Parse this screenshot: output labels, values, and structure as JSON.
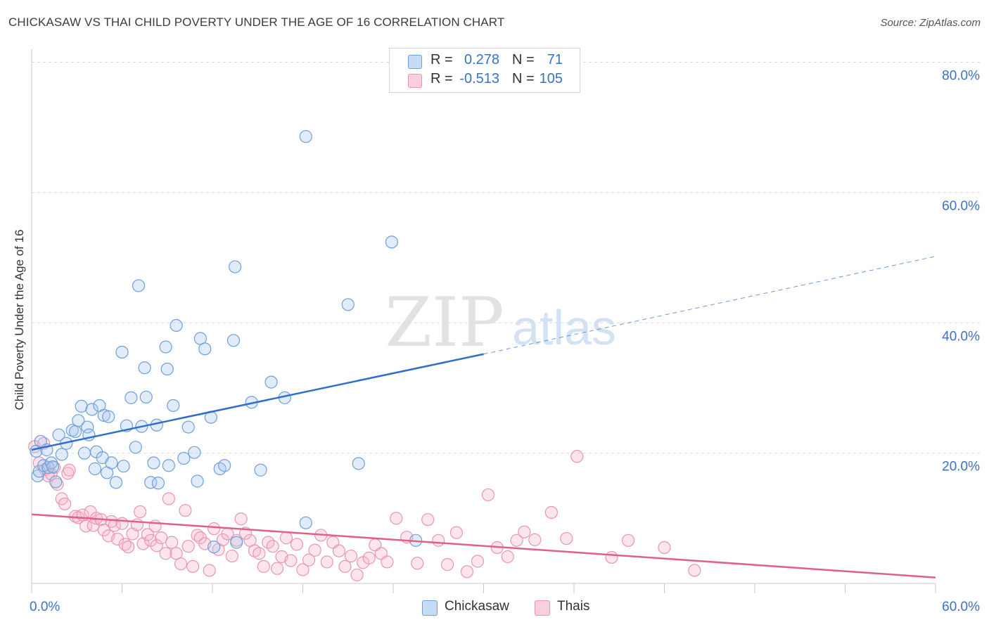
{
  "header": {
    "title": "CHICKASAW VS THAI CHILD POVERTY UNDER THE AGE OF 16 CORRELATION CHART",
    "source": "Source: ZipAtlas.com"
  },
  "watermark": {
    "zip": "ZIP",
    "atlas": "atlas"
  },
  "legend_top": {
    "rows": [
      {
        "r_label": "R =",
        "r_value": "0.278",
        "n_label": "N =",
        "n_value": "71",
        "color": "#a9c8f0"
      },
      {
        "r_label": "R =",
        "r_value": "-0.513",
        "n_label": "N =",
        "n_value": "105",
        "color": "#f5b8cc"
      }
    ]
  },
  "legend_bottom": {
    "items": [
      {
        "label": "Chickasaw",
        "color": "#a9c8f0"
      },
      {
        "label": "Thais",
        "color": "#f5b8cc"
      }
    ]
  },
  "colors": {
    "blue_fill": "rgba(168,200,240,0.35)",
    "blue_stroke": "#6f9fd8",
    "blue_line": "#2f6fcc",
    "pink_fill": "rgba(245,180,200,0.35)",
    "pink_stroke": "#e895b3",
    "pink_line": "#e0608c",
    "tick_label": "#3a72c4",
    "grid": "#dcdcdc"
  },
  "chart_data": {
    "type": "scatter",
    "title": "CHICKASAW VS THAI CHILD POVERTY UNDER THE AGE OF 16 CORRELATION CHART",
    "xlabel": "",
    "ylabel": "Child Poverty Under the Age of 16",
    "xlim": [
      0,
      60
    ],
    "ylim": [
      0,
      82
    ],
    "x_tick_labels": [
      {
        "value": 0,
        "label": "0.0%"
      },
      {
        "value": 60,
        "label": "60.0%"
      }
    ],
    "y_tick_labels": [
      {
        "value": 20,
        "label": "20.0%"
      },
      {
        "value": 40,
        "label": "40.0%"
      },
      {
        "value": 60,
        "label": "60.0%"
      },
      {
        "value": 80,
        "label": "80.0%"
      }
    ],
    "grid": true,
    "legend_position": "top-center",
    "series": [
      {
        "name": "Chickasaw",
        "points": [
          [
            0.3,
            20.3
          ],
          [
            0.4,
            16.5
          ],
          [
            0.5,
            17.2
          ],
          [
            0.6,
            21.8
          ],
          [
            0.8,
            18.1
          ],
          [
            1.0,
            20.5
          ],
          [
            1.1,
            17.8
          ],
          [
            1.3,
            18.5
          ],
          [
            1.4,
            17.9
          ],
          [
            1.6,
            15.6
          ],
          [
            1.8,
            22.8
          ],
          [
            2.0,
            19.8
          ],
          [
            2.3,
            21.5
          ],
          [
            2.7,
            23.5
          ],
          [
            2.9,
            23.3
          ],
          [
            3.1,
            25.0
          ],
          [
            3.3,
            27.2
          ],
          [
            3.5,
            20.0
          ],
          [
            3.7,
            24.0
          ],
          [
            3.8,
            22.8
          ],
          [
            4.0,
            26.7
          ],
          [
            4.2,
            17.6
          ],
          [
            4.3,
            20.2
          ],
          [
            4.5,
            27.3
          ],
          [
            4.7,
            19.3
          ],
          [
            4.8,
            25.8
          ],
          [
            5.0,
            17.0
          ],
          [
            5.1,
            25.6
          ],
          [
            5.3,
            18.5
          ],
          [
            5.6,
            15.5
          ],
          [
            6.0,
            35.5
          ],
          [
            6.1,
            18.0
          ],
          [
            6.3,
            24.2
          ],
          [
            6.6,
            28.5
          ],
          [
            6.9,
            20.9
          ],
          [
            7.1,
            45.7
          ],
          [
            7.3,
            24.1
          ],
          [
            7.5,
            33.1
          ],
          [
            7.6,
            28.6
          ],
          [
            7.9,
            15.5
          ],
          [
            8.1,
            18.5
          ],
          [
            8.3,
            24.3
          ],
          [
            8.4,
            15.4
          ],
          [
            8.9,
            36.3
          ],
          [
            9.0,
            32.9
          ],
          [
            9.1,
            18.1
          ],
          [
            9.4,
            27.3
          ],
          [
            9.6,
            39.6
          ],
          [
            10.1,
            19.2
          ],
          [
            10.4,
            24.0
          ],
          [
            10.8,
            20.1
          ],
          [
            11.0,
            15.7
          ],
          [
            11.2,
            37.6
          ],
          [
            11.5,
            36.0
          ],
          [
            11.9,
            25.5
          ],
          [
            12.1,
            5.6
          ],
          [
            12.5,
            17.6
          ],
          [
            12.8,
            18.1
          ],
          [
            13.4,
            37.3
          ],
          [
            13.5,
            48.6
          ],
          [
            13.6,
            6.3
          ],
          [
            14.6,
            27.8
          ],
          [
            15.2,
            17.4
          ],
          [
            15.9,
            30.9
          ],
          [
            16.8,
            28.5
          ],
          [
            18.2,
            9.3
          ],
          [
            18.2,
            68.6
          ],
          [
            21.0,
            42.8
          ],
          [
            21.7,
            18.4
          ],
          [
            23.9,
            52.4
          ],
          [
            25.5,
            6.6
          ]
        ],
        "trend": {
          "x0": 0,
          "y0": 20.5,
          "x1_solid": 30,
          "y1_solid": 35.2,
          "x1_dashed": 60,
          "y1_dashed": 50.2
        }
      },
      {
        "name": "Thais",
        "points": [
          [
            0.2,
            21.0
          ],
          [
            0.5,
            18.5
          ],
          [
            0.8,
            21.5
          ],
          [
            0.9,
            17.5
          ],
          [
            1.1,
            16.5
          ],
          [
            1.3,
            16.8
          ],
          [
            1.5,
            17.8
          ],
          [
            1.7,
            15.2
          ],
          [
            2.0,
            13.0
          ],
          [
            2.2,
            12.2
          ],
          [
            2.4,
            16.9
          ],
          [
            2.5,
            17.4
          ],
          [
            2.9,
            10.3
          ],
          [
            3.1,
            10.1
          ],
          [
            3.4,
            10.5
          ],
          [
            3.6,
            8.8
          ],
          [
            3.9,
            11.0
          ],
          [
            4.1,
            8.9
          ],
          [
            4.3,
            10.0
          ],
          [
            4.6,
            9.8
          ],
          [
            4.8,
            8.2
          ],
          [
            5.1,
            7.3
          ],
          [
            5.3,
            9.5
          ],
          [
            5.5,
            8.9
          ],
          [
            5.7,
            6.8
          ],
          [
            6.0,
            9.2
          ],
          [
            6.2,
            6.0
          ],
          [
            6.4,
            5.6
          ],
          [
            6.7,
            7.6
          ],
          [
            7.0,
            9.0
          ],
          [
            7.2,
            11.0
          ],
          [
            7.4,
            6.1
          ],
          [
            7.7,
            7.5
          ],
          [
            7.9,
            6.6
          ],
          [
            8.2,
            8.8
          ],
          [
            8.3,
            5.8
          ],
          [
            8.6,
            7.0
          ],
          [
            8.9,
            4.6
          ],
          [
            9.1,
            13.0
          ],
          [
            9.3,
            6.3
          ],
          [
            9.6,
            4.6
          ],
          [
            9.9,
            3.0
          ],
          [
            10.2,
            11.2
          ],
          [
            10.4,
            5.7
          ],
          [
            10.7,
            2.6
          ],
          [
            11.0,
            7.4
          ],
          [
            11.2,
            7.0
          ],
          [
            11.5,
            6.1
          ],
          [
            11.8,
            2.0
          ],
          [
            12.1,
            8.4
          ],
          [
            12.4,
            5.2
          ],
          [
            12.7,
            6.7
          ],
          [
            13.0,
            7.6
          ],
          [
            13.3,
            4.2
          ],
          [
            13.6,
            6.6
          ],
          [
            13.9,
            9.9
          ],
          [
            14.2,
            7.7
          ],
          [
            14.5,
            6.6
          ],
          [
            14.8,
            5.0
          ],
          [
            15.1,
            4.6
          ],
          [
            15.4,
            2.6
          ],
          [
            15.7,
            6.3
          ],
          [
            16.0,
            5.7
          ],
          [
            16.3,
            2.3
          ],
          [
            16.6,
            4.1
          ],
          [
            16.9,
            7.0
          ],
          [
            17.2,
            3.5
          ],
          [
            17.6,
            6.0
          ],
          [
            18.0,
            2.1
          ],
          [
            18.4,
            3.6
          ],
          [
            18.8,
            5.1
          ],
          [
            19.2,
            7.4
          ],
          [
            19.6,
            3.3
          ],
          [
            20.0,
            6.3
          ],
          [
            20.4,
            5.0
          ],
          [
            20.8,
            2.6
          ],
          [
            21.2,
            4.2
          ],
          [
            21.6,
            1.3
          ],
          [
            22.0,
            3.2
          ],
          [
            22.4,
            3.9
          ],
          [
            22.8,
            5.9
          ],
          [
            23.2,
            4.6
          ],
          [
            23.6,
            3.3
          ],
          [
            24.2,
            10.0
          ],
          [
            24.9,
            7.1
          ],
          [
            25.6,
            3.1
          ],
          [
            26.3,
            9.8
          ],
          [
            27.0,
            6.6
          ],
          [
            27.6,
            2.9
          ],
          [
            28.2,
            7.8
          ],
          [
            28.9,
            1.8
          ],
          [
            29.6,
            3.4
          ],
          [
            30.3,
            13.6
          ],
          [
            30.9,
            5.5
          ],
          [
            31.6,
            4.1
          ],
          [
            32.2,
            6.6
          ],
          [
            32.7,
            7.9
          ],
          [
            33.4,
            6.7
          ],
          [
            34.5,
            10.9
          ],
          [
            35.5,
            6.9
          ],
          [
            36.2,
            19.5
          ],
          [
            38.5,
            4.0
          ],
          [
            39.6,
            6.6
          ],
          [
            42.0,
            5.5
          ],
          [
            44.0,
            2.0
          ]
        ],
        "trend": {
          "x0": 0,
          "y0": 10.6,
          "x1": 60,
          "y1": 0.9
        }
      }
    ]
  }
}
